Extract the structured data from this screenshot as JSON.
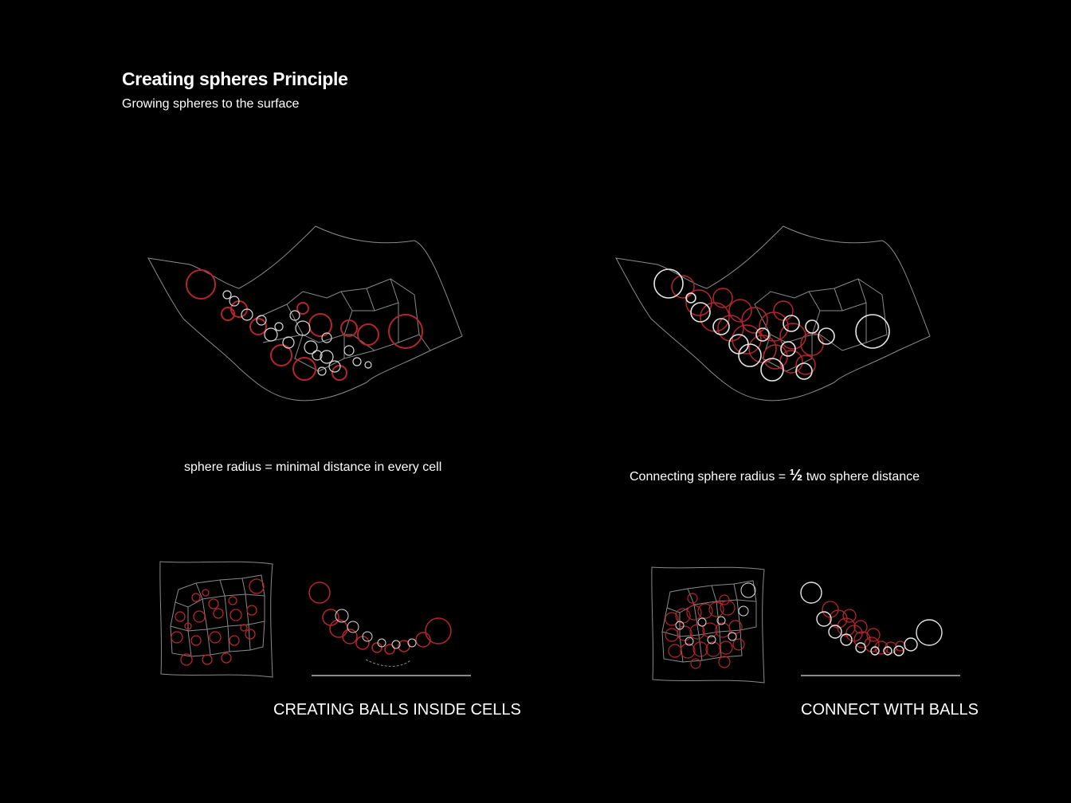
{
  "header": {
    "title": "Creating spheres Principle",
    "subtitle": "Growing spheres to the surface"
  },
  "captions": {
    "left": "sphere radius = minimal distance in every cell",
    "right_prefix": "Connecting sphere radius = ",
    "right_half": "½",
    "right_suffix": " two sphere distance"
  },
  "sections": {
    "left_label": "CREATING BALLS INSIDE CELLS",
    "right_label": "CONNECT WITH BALLS"
  },
  "colors": {
    "background": "#000000",
    "outline": "#8a8a8a",
    "sphere_red": "#b3262e",
    "sphere_white": "#e6e6e6"
  }
}
